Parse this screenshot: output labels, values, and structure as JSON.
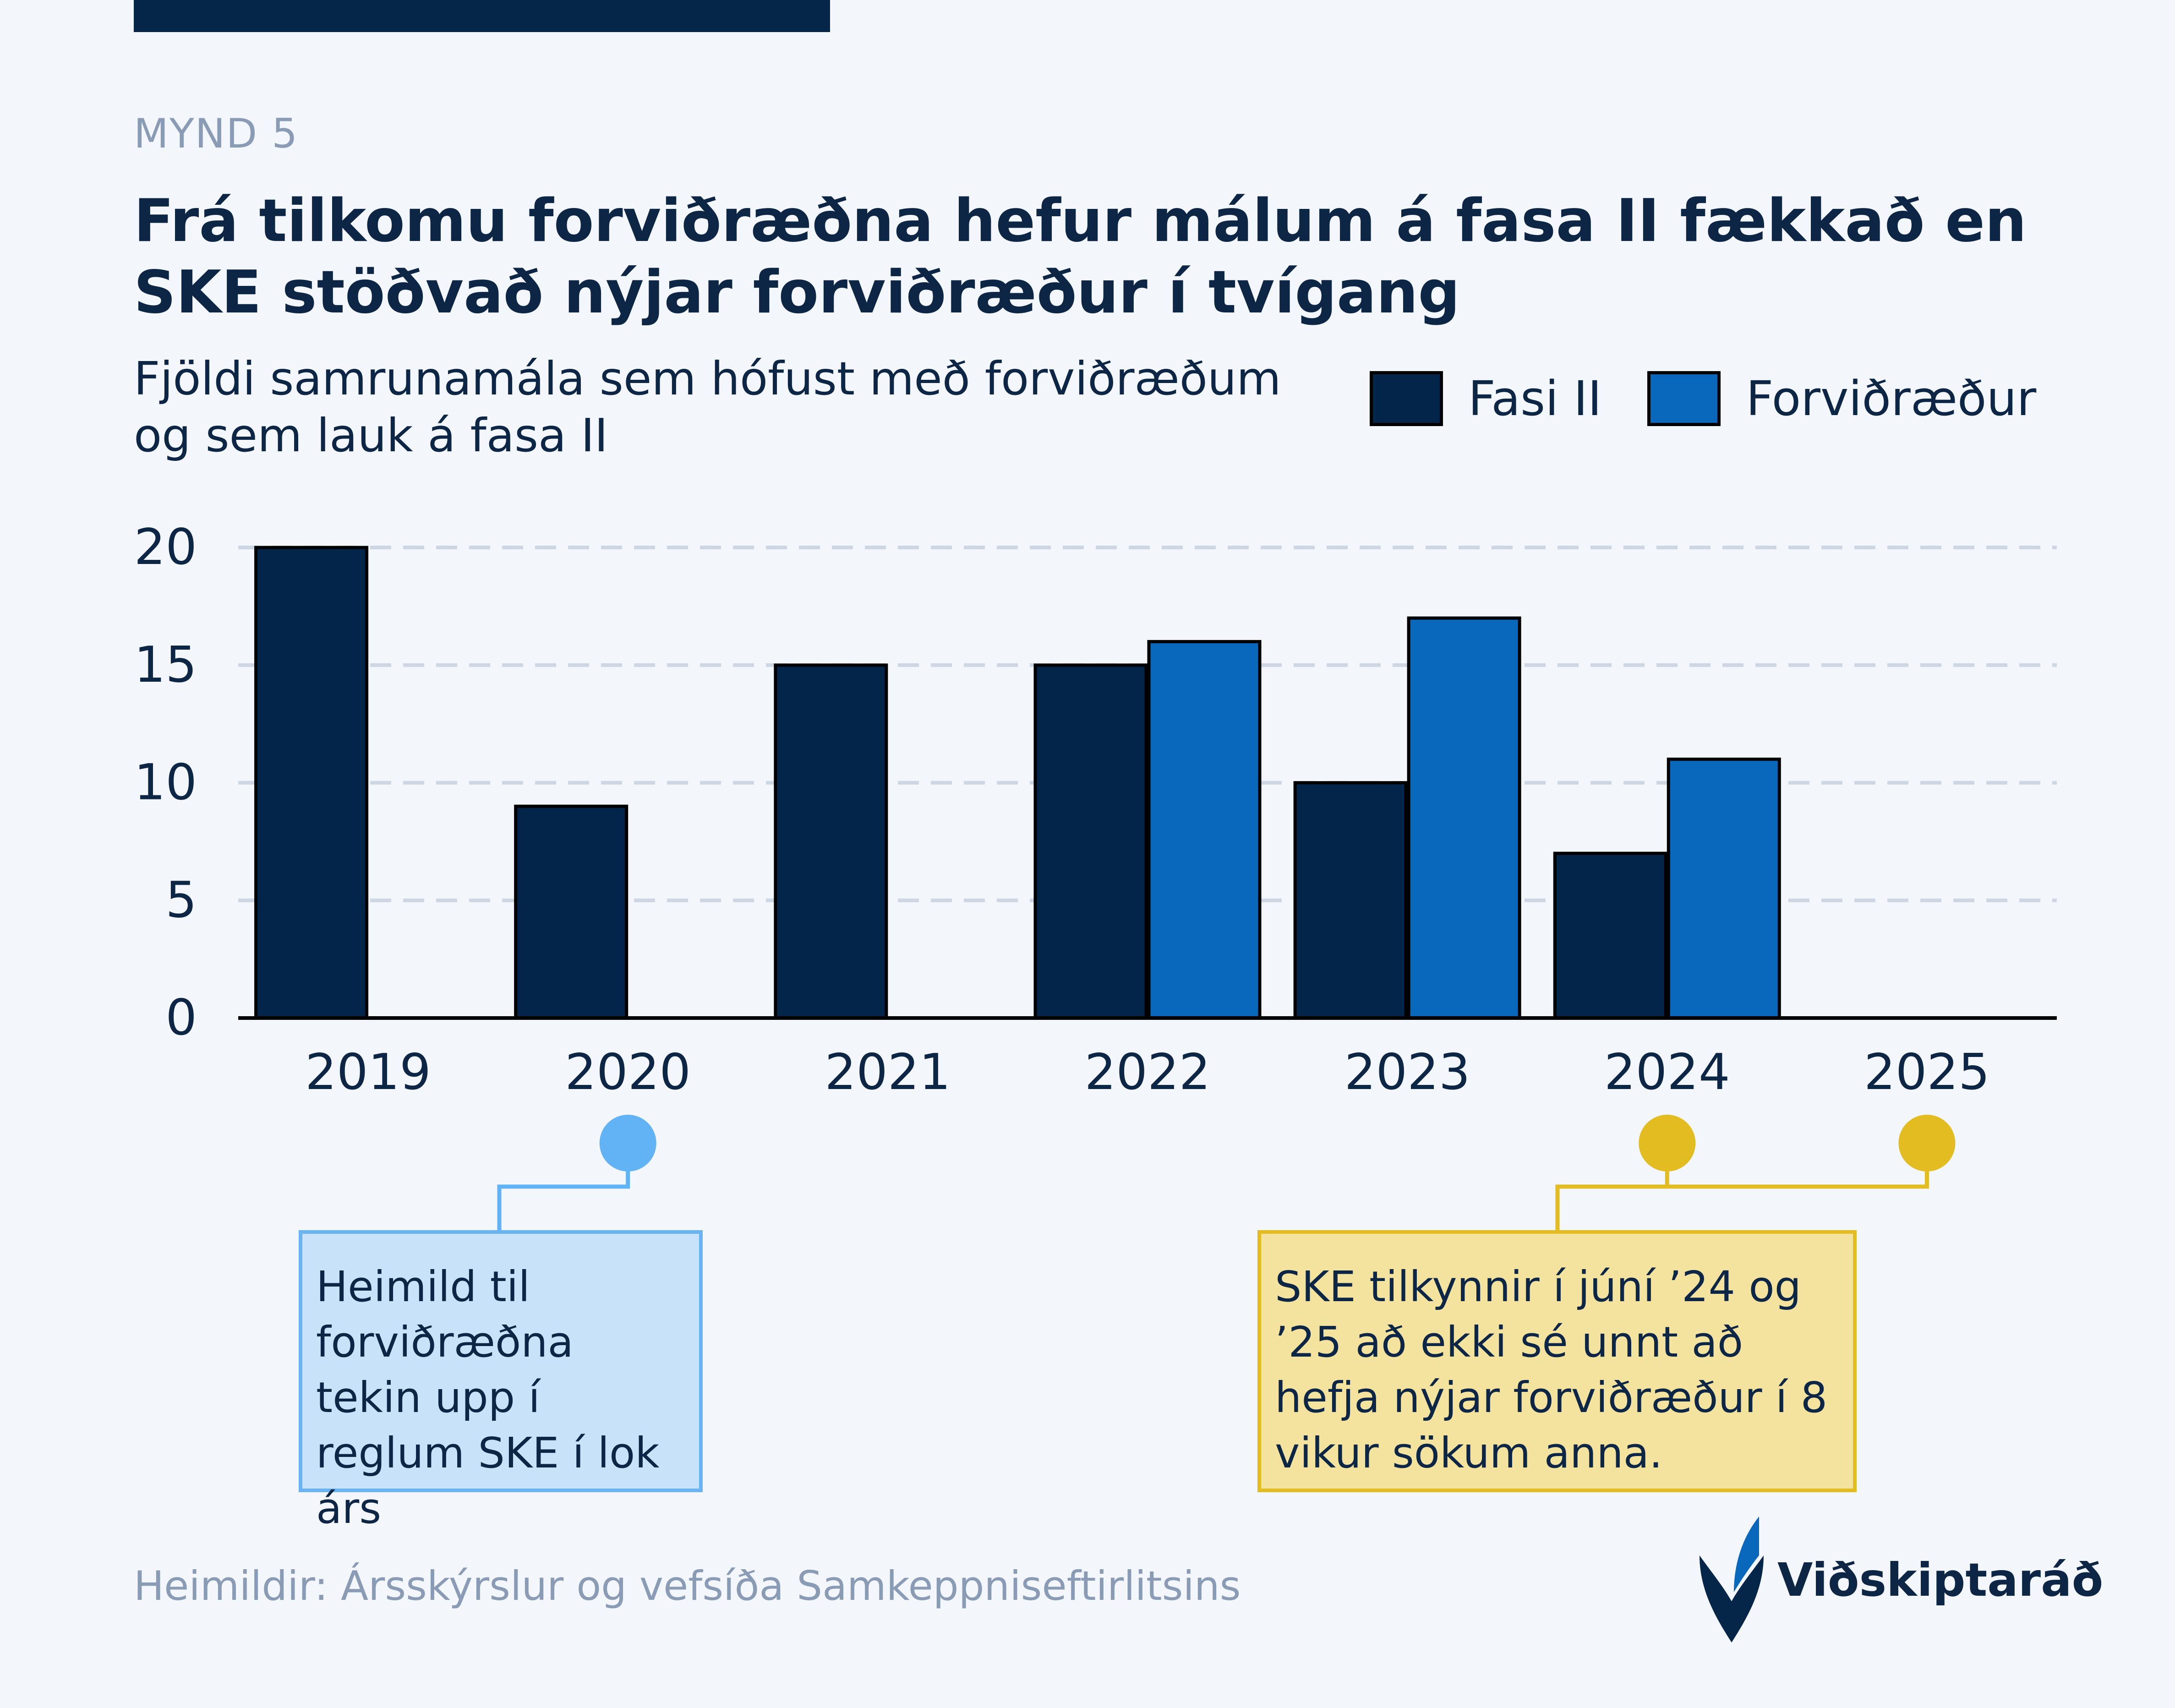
{
  "kicker": "MYND 5",
  "title": "Frá tilkomu forviðræðna hefur málum á fasa II fækkað en SKE stöðvað nýjar forviðræður í tvígang",
  "subtitle": "Fjöldi samrunamála sem hófust með forviðræðum og sem lauk á fasa II",
  "colors": {
    "fasa2": "#03254a",
    "forvidraedur": "#0a68bc",
    "grid": "#cdd6e2",
    "note_blue": "#c8e2fa",
    "note_yellow": "#f3e39f",
    "marker_blue": "#61b3f6",
    "marker_yellow": "#e2bc21"
  },
  "chart_data": {
    "type": "bar",
    "categories": [
      "2019",
      "2020",
      "2021",
      "2022",
      "2023",
      "2024",
      "2025"
    ],
    "series": [
      {
        "name": "Fasi II",
        "values": [
          20,
          9,
          15,
          15,
          10,
          7,
          null
        ]
      },
      {
        "name": "Forviðræður",
        "values": [
          null,
          null,
          null,
          16,
          17,
          11,
          null
        ]
      }
    ],
    "yticks": [
      0,
      5,
      10,
      15,
      20
    ],
    "ylim": [
      0,
      20
    ],
    "grid": true,
    "legend": "top-right",
    "annotations": [
      {
        "years": [
          "2020"
        ],
        "text": "Heimild til forviðræðna tekin upp í reglum SKE í lok árs"
      },
      {
        "years": [
          "2024",
          "2025"
        ],
        "text": "SKE tilkynnir í júní ’24 og ’25 að ekki sé unnt að hefja nýjar forviðræður í 8 vikur sökum anna."
      }
    ]
  },
  "source": "Heimildir: Ársskýrslur og vefsíða Samkeppniseftirlitsins",
  "brand": "Viðskiptaráð"
}
